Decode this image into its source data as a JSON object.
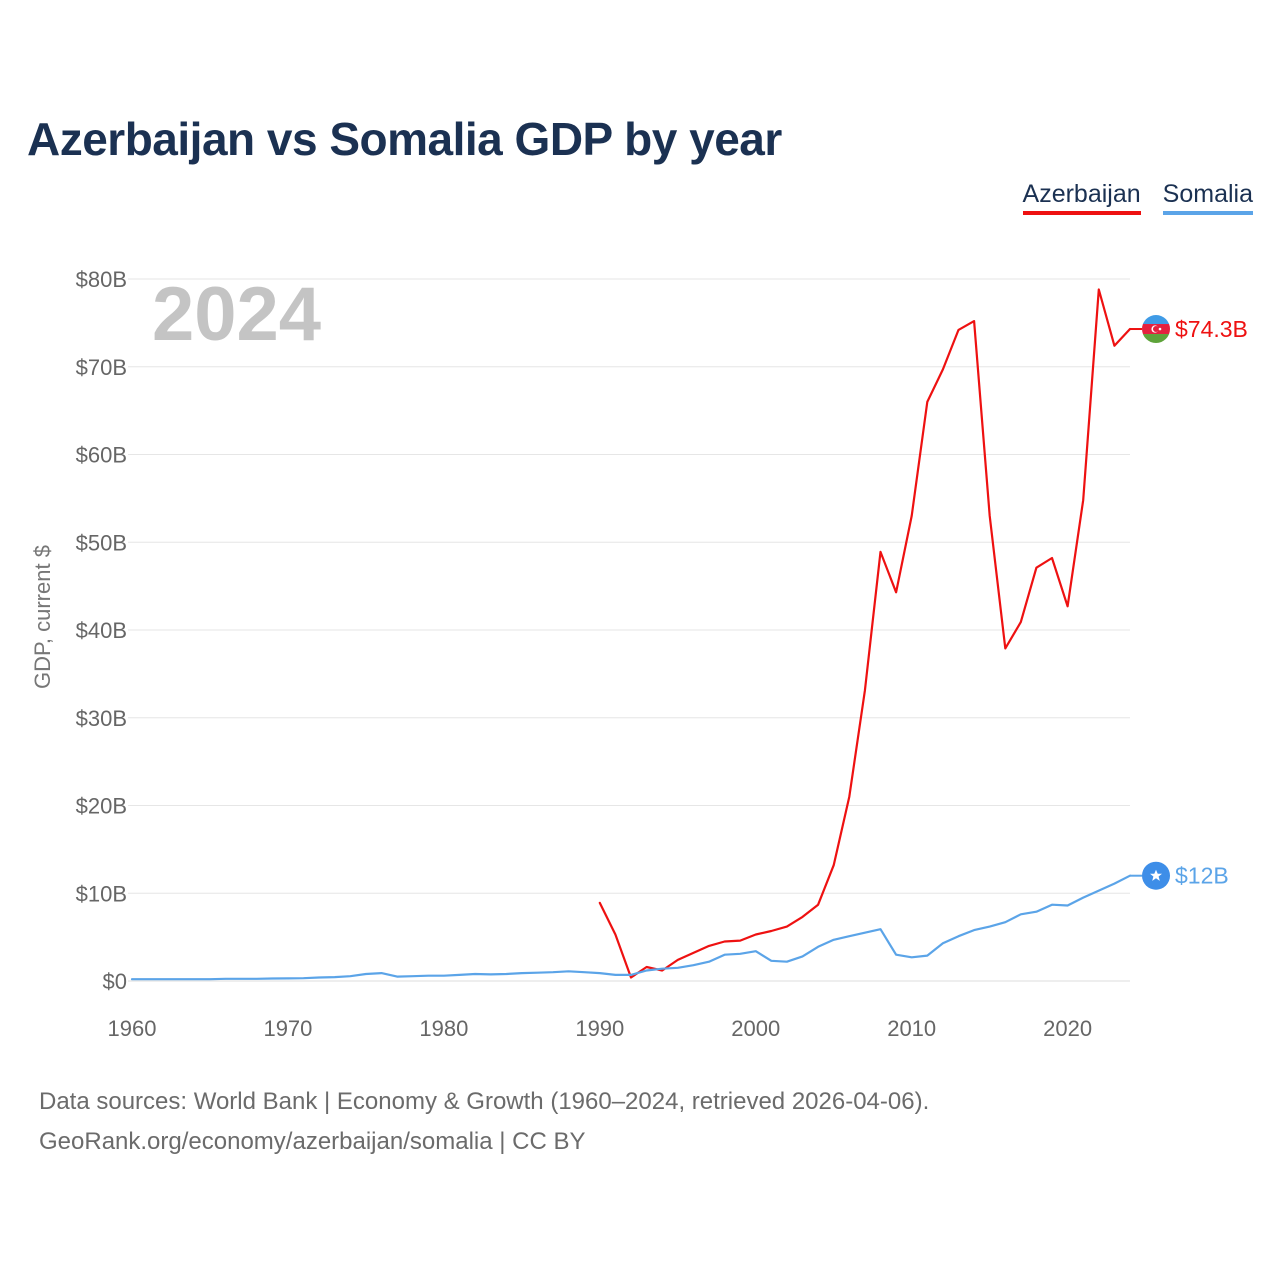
{
  "header": {
    "title": "Azerbaijan vs Somalia GDP by year"
  },
  "legend": {
    "items": [
      "Azerbaijan",
      "Somalia"
    ]
  },
  "footer": {
    "line1": "Data sources: World Bank | Economy & Growth (1960–2024, retrieved 2026-04-06).",
    "line2": "GeoRank.org/economy/azerbaijan/somalia | CC BY"
  },
  "colors": {
    "azerbaijan": "#ee1111",
    "somalia": "#5ba4e8",
    "title": "#1b3152",
    "grid": "#e6e6e6",
    "year": "#c4c4c4"
  },
  "chart_data": {
    "type": "line",
    "title": "Azerbaijan vs Somalia GDP by year",
    "ylabel": "GDP, current $",
    "xlabel": "",
    "year_label": "2024",
    "xlim": [
      1960,
      2024
    ],
    "ylim": [
      0,
      80
    ],
    "x_ticks": [
      "1960",
      "1970",
      "1980",
      "1990",
      "2000",
      "2010",
      "2020"
    ],
    "y_ticks": [
      "$0",
      "$10B",
      "$20B",
      "$30B",
      "$40B",
      "$50B",
      "$60B",
      "$70B",
      "$80B"
    ],
    "units": "billions of current US$",
    "series": [
      {
        "name": "Azerbaijan",
        "color": "#ee1111",
        "end_label": "$74.3B",
        "flag_icon": "azerbaijan-flag-icon",
        "years": [
          1990,
          1991,
          1992,
          1993,
          1994,
          1995,
          1996,
          1997,
          1998,
          1999,
          2000,
          2001,
          2002,
          2003,
          2004,
          2005,
          2006,
          2007,
          2008,
          2009,
          2010,
          2011,
          2012,
          2013,
          2014,
          2015,
          2016,
          2017,
          2018,
          2019,
          2020,
          2021,
          2022,
          2023,
          2024
        ],
        "values": [
          8.9,
          5.3,
          0.4,
          1.6,
          1.2,
          2.4,
          3.2,
          4.0,
          4.5,
          4.6,
          5.3,
          5.7,
          6.2,
          7.3,
          8.7,
          13.2,
          21.0,
          33.1,
          48.9,
          44.3,
          53.0,
          66.0,
          69.7,
          74.2,
          75.2,
          53.0,
          37.9,
          40.9,
          47.1,
          48.2,
          42.7,
          54.8,
          78.8,
          72.4,
          74.3
        ]
      },
      {
        "name": "Somalia",
        "color": "#5ba4e8",
        "end_label": "$12B",
        "flag_icon": "somalia-flag-icon",
        "years": [
          1960,
          1961,
          1962,
          1963,
          1964,
          1965,
          1966,
          1967,
          1968,
          1969,
          1970,
          1971,
          1972,
          1973,
          1974,
          1975,
          1976,
          1977,
          1978,
          1979,
          1980,
          1981,
          1982,
          1983,
          1984,
          1985,
          1986,
          1987,
          1988,
          1989,
          1990,
          1991,
          1992,
          1993,
          1994,
          1995,
          1996,
          1997,
          1998,
          1999,
          2000,
          2001,
          2002,
          2003,
          2004,
          2005,
          2006,
          2007,
          2008,
          2009,
          2010,
          2011,
          2012,
          2013,
          2014,
          2015,
          2016,
          2017,
          2018,
          2019,
          2020,
          2021,
          2022,
          2023,
          2024
        ],
        "values": [
          0.2,
          0.2,
          0.2,
          0.2,
          0.2,
          0.2,
          0.25,
          0.25,
          0.25,
          0.28,
          0.3,
          0.32,
          0.4,
          0.45,
          0.55,
          0.8,
          0.9,
          0.5,
          0.55,
          0.6,
          0.6,
          0.7,
          0.8,
          0.75,
          0.8,
          0.9,
          0.95,
          1.0,
          1.1,
          1.0,
          0.9,
          0.7,
          0.7,
          1.2,
          1.4,
          1.5,
          1.8,
          2.2,
          3.0,
          3.1,
          3.4,
          2.3,
          2.2,
          2.8,
          3.9,
          4.7,
          5.1,
          5.5,
          5.9,
          3.0,
          2.7,
          2.9,
          4.3,
          5.1,
          5.8,
          6.2,
          6.7,
          7.6,
          7.9,
          8.7,
          8.6,
          9.5,
          10.3,
          11.1,
          12.0
        ]
      }
    ]
  }
}
